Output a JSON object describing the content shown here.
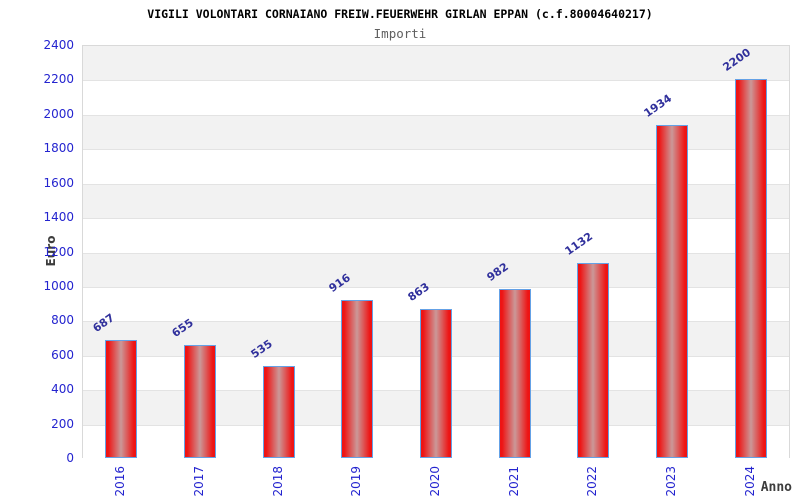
{
  "header": {
    "title": "VIGILI VOLONTARI CORNAIANO FREIW.FEUERWEHR GIRLAN EPPAN (c.f.80004640217)",
    "subtitle": "Importi"
  },
  "chart_data": {
    "type": "bar",
    "title": "VIGILI VOLONTARI CORNAIANO FREIW.FEUERWEHR GIRLAN EPPAN (c.f.80004640217)",
    "subtitle": "Importi",
    "categories": [
      "2016",
      "2017",
      "2018",
      "2019",
      "2020",
      "2021",
      "2022",
      "2023",
      "2024"
    ],
    "values": [
      687,
      655,
      535,
      916,
      863,
      982,
      1132,
      1934,
      2200
    ],
    "xlabel": "Anno",
    "ylabel": "Euro",
    "ylim": [
      0,
      2400
    ],
    "ytick_step": 200,
    "yticks": [
      0,
      200,
      400,
      600,
      800,
      1000,
      1200,
      1400,
      1600,
      1800,
      2000,
      2200,
      2400
    ],
    "grid": "horizontal-bands",
    "legend_position": "none"
  },
  "colors": {
    "bar_edge_red": "#ee1414",
    "bar_center_light": "#cb9898",
    "bar_border_blue": "#64a1e6",
    "tick_label_blue": "#2424cf",
    "value_label_navy": "#30309c",
    "band_gray": "#f2f2f2",
    "band_white": "#ffffff",
    "grid_line": "#e3e3e3",
    "plot_border": "#d9d9d9",
    "title_color": "#000000",
    "subtitle_color": "#606060",
    "axis_title_color": "#3d3d3d"
  }
}
